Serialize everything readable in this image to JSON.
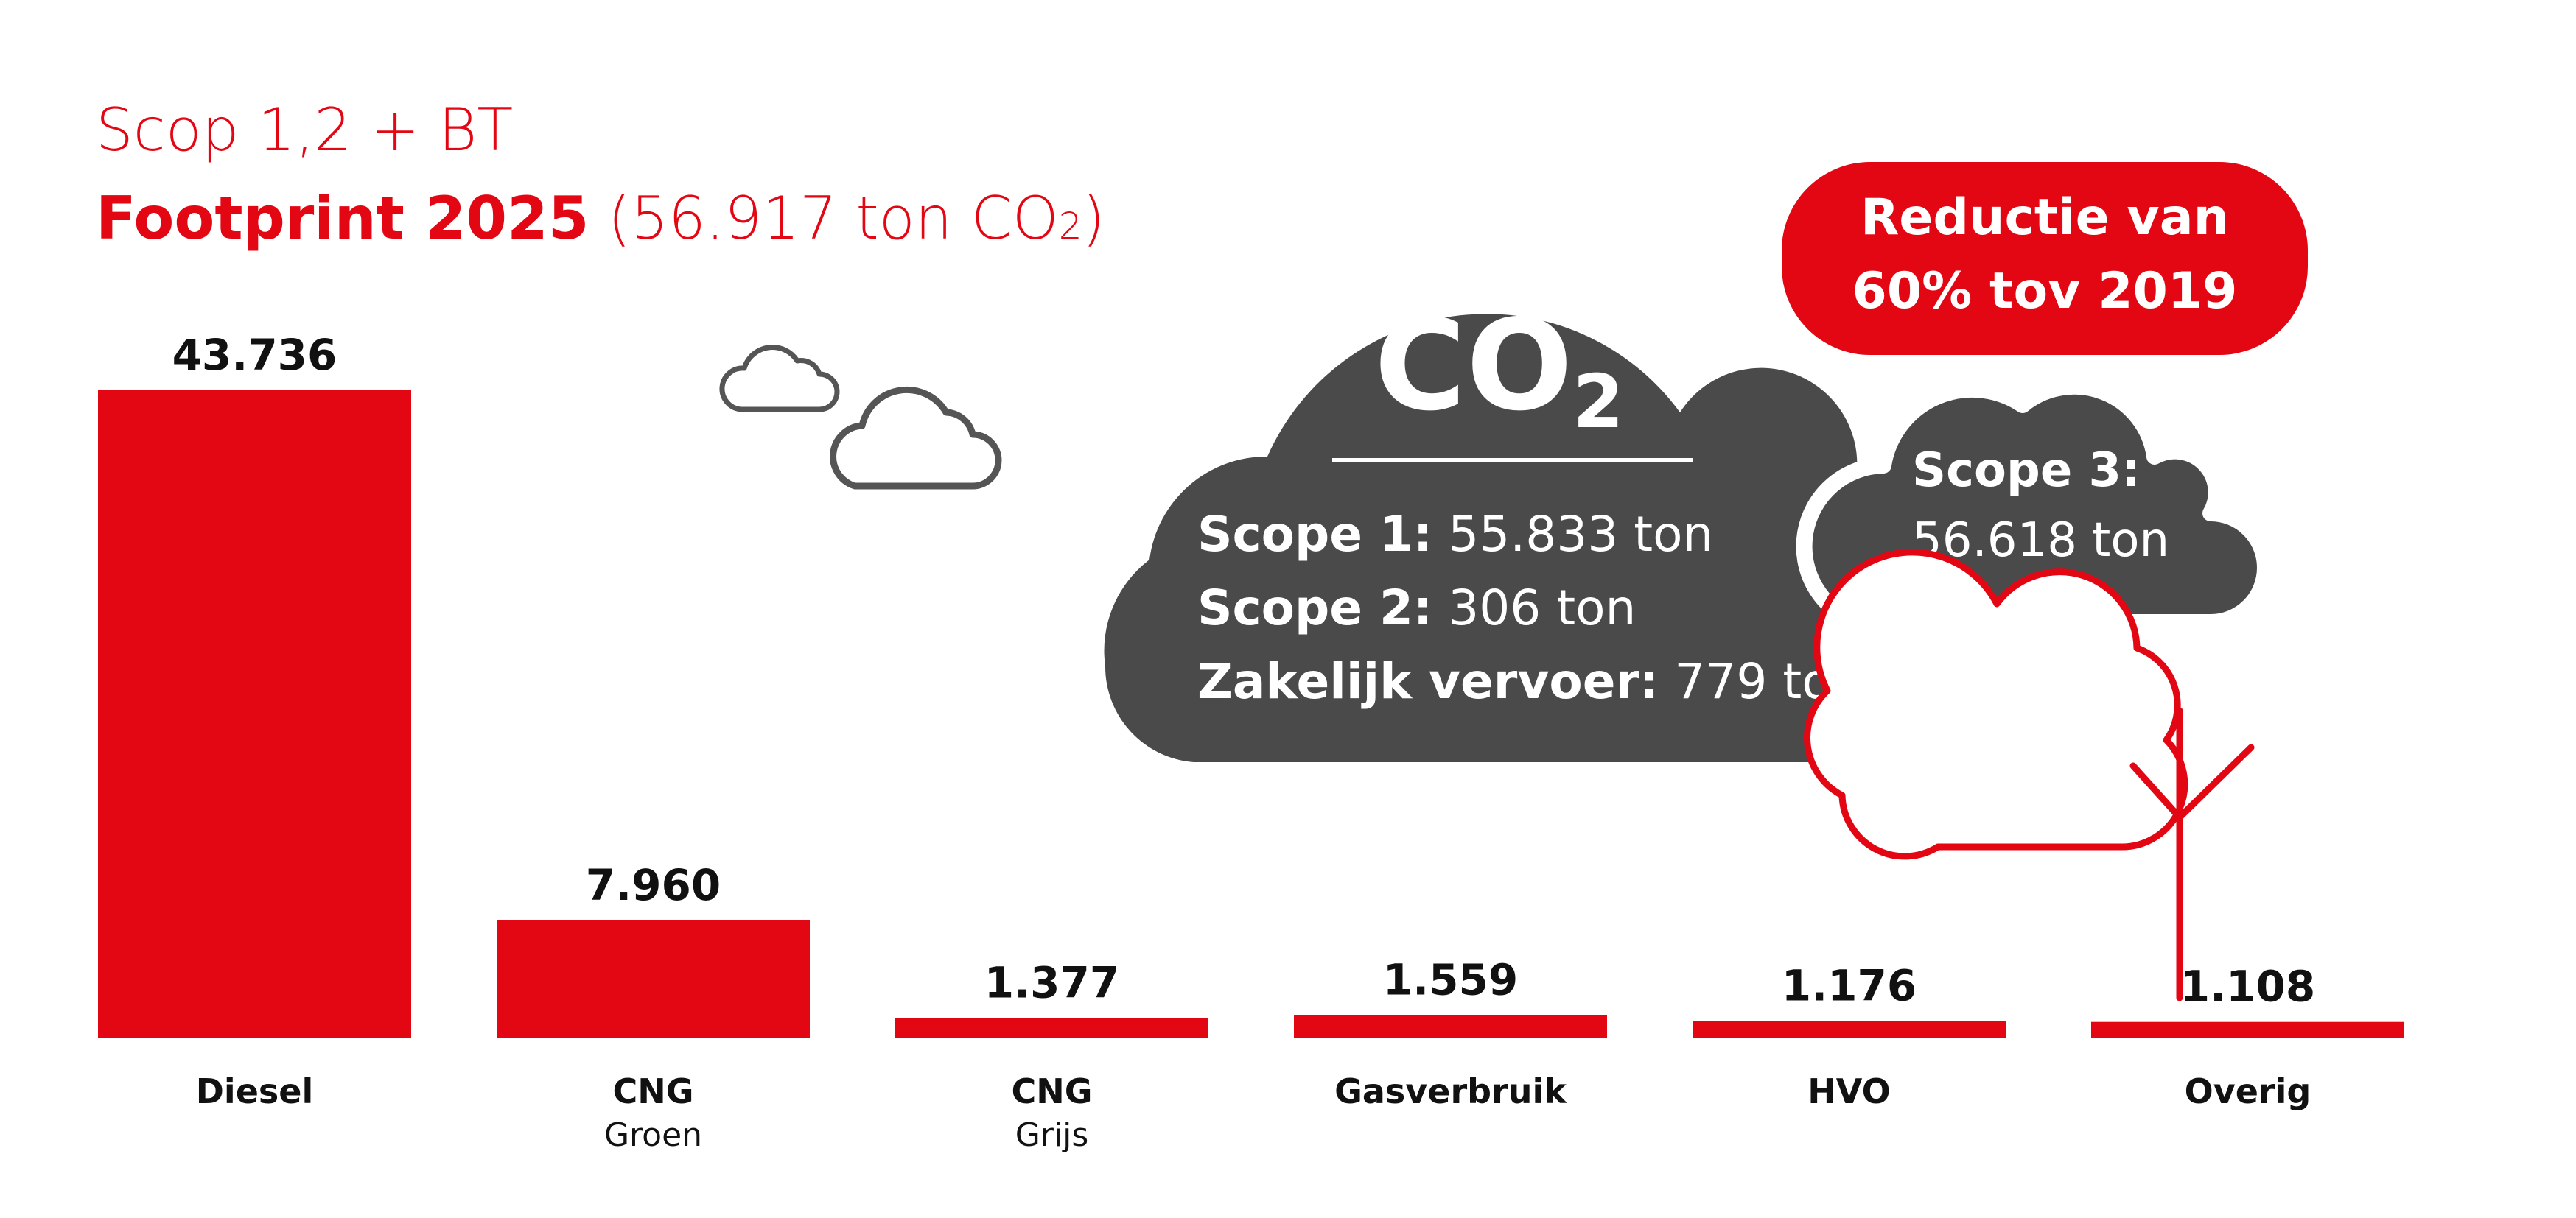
{
  "header": {
    "subtitle": "Scop 1,2 + BT",
    "title_bold": "Footprint 2025",
    "title_paren_open": " (56.917 ton CO",
    "title_sub": "2",
    "title_paren_close": ")"
  },
  "cloud_main": {
    "co2_main": "CO",
    "co2_sub": "2",
    "scope1_label": "Scope 1:",
    "scope1_value": "55.833 ton",
    "scope2_label": "Scope 2:",
    "scope2_value": "306 ton",
    "travel_label": "Zakelijk vervoer:",
    "travel_value": "779 ton"
  },
  "cloud_scope3": {
    "label": "Scope 3:",
    "value": "56.618 ton"
  },
  "badge": {
    "line1": "Reductie van",
    "line2": "60% tov 2019"
  },
  "colors": {
    "red": "#e30613",
    "dark_gray": "#4a4a4a",
    "outline_gray": "#555555"
  },
  "icons": [
    "small-cloud-icon",
    "large-cloud-icon",
    "tree-icon"
  ],
  "chart_data": {
    "type": "bar",
    "categories": [
      "Diesel",
      "CNG Groen",
      "CNG Grijs",
      "Gasverbruik",
      "HVO",
      "Overig"
    ],
    "category_labels": [
      {
        "main": "Diesel",
        "sub": ""
      },
      {
        "main": "CNG",
        "sub": "Groen"
      },
      {
        "main": "CNG",
        "sub": "Grijs"
      },
      {
        "main": "Gasverbruik",
        "sub": ""
      },
      {
        "main": "HVO",
        "sub": ""
      },
      {
        "main": "Overig",
        "sub": ""
      }
    ],
    "values": [
      43736,
      7960,
      1377,
      1559,
      1176,
      1108
    ],
    "data_labels": [
      "43.736",
      "7.960",
      "1.377",
      "1.559",
      "1.176",
      "1.108"
    ],
    "unit": "ton CO2",
    "ylim": [
      0,
      43736
    ],
    "grid": false,
    "legend": "none"
  }
}
